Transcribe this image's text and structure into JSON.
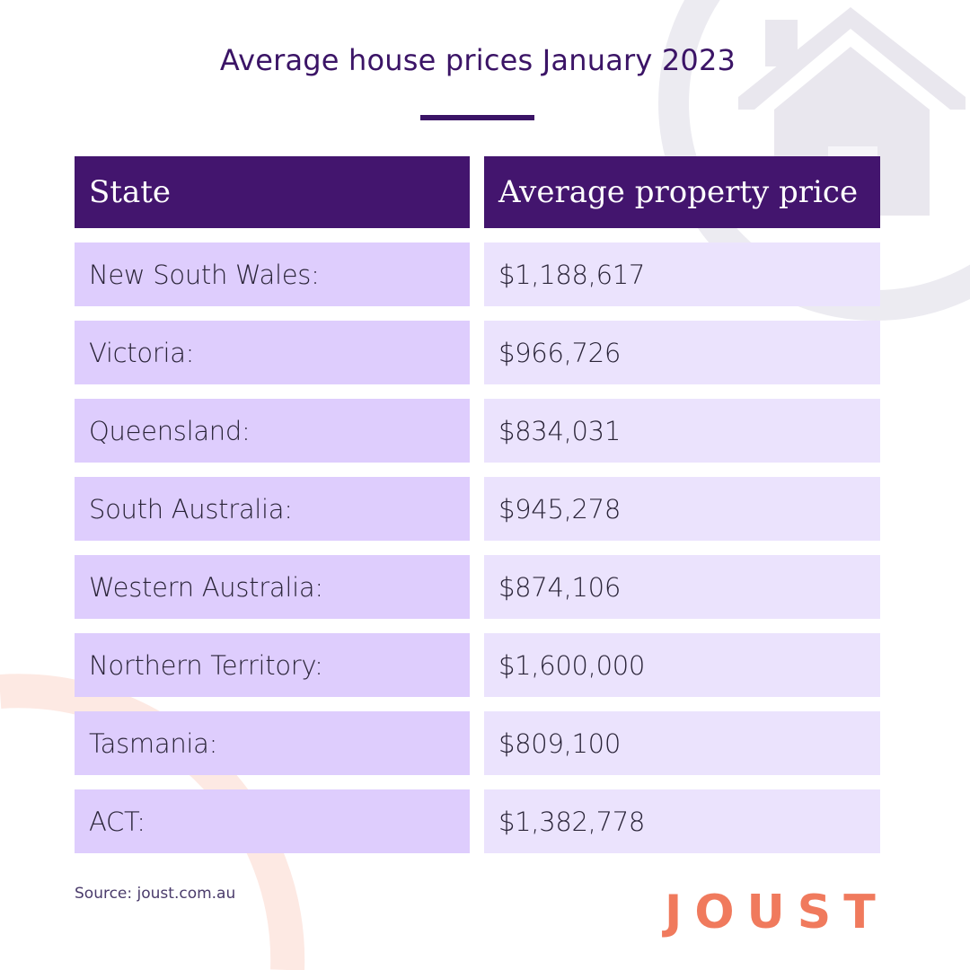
{
  "title": "Average house prices January 2023",
  "table": {
    "headers": {
      "state": "State",
      "price": "Average property price"
    },
    "rows": [
      {
        "state": "New South Wales:",
        "price": "$1,188,617"
      },
      {
        "state": "Victoria:",
        "price": "$966,726"
      },
      {
        "state": "Queensland:",
        "price": "$834,031"
      },
      {
        "state": "South Australia:",
        "price": "$945,278"
      },
      {
        "state": "Western Australia:",
        "price": "$874,106"
      },
      {
        "state": "Northern Territory:",
        "price": "$1,600,000"
      },
      {
        "state": "Tasmania:",
        "price": "$809,100"
      },
      {
        "state": "ACT:",
        "price": "$1,382,778"
      }
    ]
  },
  "source": "Source: joust.com.au",
  "logo": {
    "text": "JOUST"
  },
  "colors": {
    "brand_purple": "#43156e",
    "state_cell": "#decdfd",
    "price_cell": "#ebe3fd",
    "logo_coral": "#f07a5d",
    "decor_house": "#e9e6ef",
    "decor_arc": "#fde9e3"
  }
}
